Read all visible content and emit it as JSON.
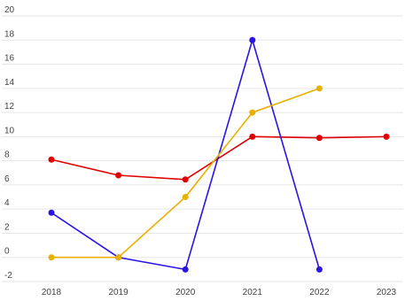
{
  "chart_data": {
    "type": "line",
    "categories": [
      "2018",
      "2019",
      "2020",
      "2021",
      "2022",
      "2023"
    ],
    "series": [
      {
        "color": "#e00000",
        "values": [
          8.1,
          6.8,
          6.45,
          10,
          9.9,
          10
        ]
      },
      {
        "color": "#2a14e6",
        "values": [
          3.7,
          0,
          -1,
          18,
          -1,
          null
        ]
      },
      {
        "color": "#e8b000",
        "values": [
          0,
          0,
          5,
          12,
          14,
          null
        ]
      }
    ],
    "ylim": [
      -2,
      20
    ],
    "yticks": [
      -2,
      0,
      2,
      4,
      6,
      8,
      10,
      12,
      14,
      16,
      18,
      20
    ],
    "grid": true
  }
}
